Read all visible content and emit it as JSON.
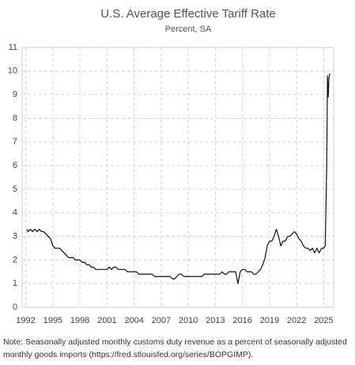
{
  "chart_data": {
    "type": "line",
    "title": "U.S. Average Effective Tariff Rate",
    "subtitle": "Percent, SA",
    "note": "Note: Seasonally adjusted monthly customs duty revenue as a percent of seasonally adjusted monthly goods imports (https://fred.stlouisfed.org/series/BOPGIMP).",
    "xlim": [
      1991.6,
      2026.1
    ],
    "xticks": [
      1992,
      1995,
      1998,
      2001,
      2004,
      2007,
      2010,
      2013,
      2016,
      2019,
      2022,
      2025
    ],
    "ylim": [
      0,
      11
    ],
    "yticks": [
      0,
      1,
      2,
      3,
      4,
      5,
      6,
      7,
      8,
      9,
      10,
      11
    ],
    "grid": true,
    "series": [
      {
        "name": "Tariff rate",
        "color": "#111111",
        "x": [
          1992.1,
          1992.25,
          1992.5,
          1992.75,
          1993,
          1993.25,
          1993.5,
          1993.75,
          1994,
          1994.25,
          1994.5,
          1994.75,
          1995,
          1995.25,
          1995.5,
          1995.75,
          1996,
          1996.25,
          1996.5,
          1996.75,
          1997,
          1997.25,
          1997.5,
          1997.75,
          1998,
          1998.25,
          1998.5,
          1998.75,
          1999,
          1999.25,
          1999.5,
          1999.75,
          2000,
          2000.25,
          2000.5,
          2000.75,
          2001,
          2001.25,
          2001.5,
          2001.75,
          2002,
          2002.25,
          2002.5,
          2002.75,
          2003,
          2003.25,
          2003.5,
          2003.75,
          2004,
          2004.25,
          2004.5,
          2004.75,
          2005,
          2005.25,
          2005.5,
          2005.75,
          2006,
          2006.25,
          2006.5,
          2006.75,
          2007,
          2007.25,
          2007.5,
          2007.75,
          2008,
          2008.25,
          2008.5,
          2008.75,
          2009,
          2009.25,
          2009.5,
          2009.75,
          2010,
          2010.25,
          2010.5,
          2010.75,
          2011,
          2011.25,
          2011.5,
          2011.75,
          2012,
          2012.25,
          2012.5,
          2012.75,
          2013,
          2013.25,
          2013.5,
          2013.75,
          2014,
          2014.25,
          2014.5,
          2014.75,
          2015,
          2015.25,
          2015.5,
          2015.75,
          2016,
          2016.25,
          2016.5,
          2016.75,
          2017,
          2017.25,
          2017.5,
          2017.75,
          2018,
          2018.25,
          2018.5,
          2018.75,
          2019,
          2019.25,
          2019.5,
          2019.75,
          2020,
          2020.25,
          2020.5,
          2020.75,
          2021,
          2021.25,
          2021.5,
          2021.75,
          2022,
          2022.25,
          2022.5,
          2022.75,
          2023,
          2023.25,
          2023.5,
          2023.75,
          2024,
          2024.25,
          2024.5,
          2024.75,
          2025,
          2025.17,
          2025.33,
          2025.42,
          2025.5,
          2025.58,
          2025.67
        ],
        "values": [
          3.3,
          3.2,
          3.3,
          3.2,
          3.3,
          3.2,
          3.3,
          3.2,
          3.2,
          3.1,
          3.0,
          2.9,
          2.6,
          2.5,
          2.5,
          2.5,
          2.4,
          2.3,
          2.2,
          2.1,
          2.1,
          2.1,
          2.0,
          2.0,
          2.0,
          1.9,
          1.9,
          1.8,
          1.8,
          1.7,
          1.7,
          1.6,
          1.6,
          1.6,
          1.6,
          1.6,
          1.6,
          1.7,
          1.6,
          1.7,
          1.7,
          1.6,
          1.6,
          1.6,
          1.6,
          1.5,
          1.5,
          1.5,
          1.5,
          1.5,
          1.4,
          1.4,
          1.4,
          1.4,
          1.4,
          1.4,
          1.4,
          1.3,
          1.3,
          1.3,
          1.3,
          1.3,
          1.3,
          1.3,
          1.3,
          1.2,
          1.2,
          1.3,
          1.4,
          1.4,
          1.3,
          1.3,
          1.3,
          1.3,
          1.3,
          1.3,
          1.3,
          1.3,
          1.3,
          1.4,
          1.4,
          1.4,
          1.4,
          1.4,
          1.4,
          1.4,
          1.4,
          1.5,
          1.4,
          1.4,
          1.5,
          1.5,
          1.5,
          1.5,
          1.0,
          1.5,
          1.6,
          1.6,
          1.5,
          1.5,
          1.5,
          1.4,
          1.4,
          1.5,
          1.6,
          1.8,
          2.1,
          2.6,
          2.8,
          2.8,
          3.0,
          3.3,
          3.0,
          2.6,
          2.8,
          2.8,
          3.0,
          3.0,
          3.1,
          3.2,
          3.1,
          2.9,
          2.8,
          2.6,
          2.5,
          2.5,
          2.4,
          2.5,
          2.3,
          2.5,
          2.3,
          2.5,
          2.5,
          2.6,
          6.0,
          9.8,
          8.9,
          9.7,
          9.9
        ]
      }
    ]
  }
}
